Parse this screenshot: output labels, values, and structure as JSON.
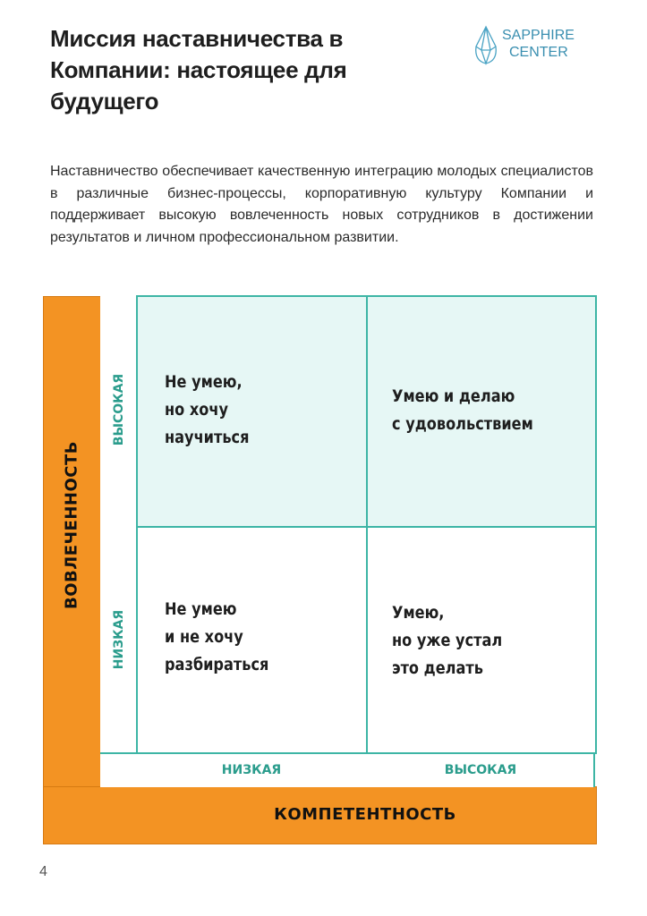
{
  "header": {
    "title": "Миссия наставничества в Компании: настоящее для будущего",
    "logo_line1": "SAPPHIRE",
    "logo_line2": "CENTER"
  },
  "intro": "Наставничество обеспечивает качественную интеграцию молодых специалистов в различные бизнес-процессы, корпоративную культуру Компании и поддерживает высокую вовлеченность новых сотрудников в достижении результатов и личном профессиональном развитии.",
  "matrix": {
    "y_axis": "ВОВЛЕЧЕННОСТЬ",
    "x_axis": "КОМПЕТЕНТНОСТЬ",
    "y_high": "ВЫСОКАЯ",
    "y_low": "НИЗКАЯ",
    "x_low": "НИЗКАЯ",
    "x_high": "ВЫСОКАЯ",
    "q_top_left": "Не умею,\nно хочу\nнаучиться",
    "q_top_right": "Умею и делаю\nс удовольствием",
    "q_bottom_left": "Не умею\nи не хочу\nразбираться",
    "q_bottom_right": "Умею,\nно уже устал\nэто делать",
    "colors": {
      "axis": "#f39323",
      "grid": "#3db5a5",
      "highlight": "#e6f7f5"
    }
  },
  "page_number": "4"
}
